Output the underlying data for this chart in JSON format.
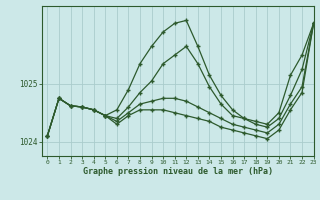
{
  "title": "Graphe pression niveau de la mer (hPa)",
  "bg_color": "#cce8e8",
  "grid_color": "#aacccc",
  "line_color": "#2d5a2d",
  "xlim": [
    -0.5,
    23
  ],
  "ylim": [
    1023.75,
    1026.35
  ],
  "yticks": [
    1024,
    1025
  ],
  "ytick_labels": [
    "1024",
    "1025"
  ],
  "xticks": [
    0,
    1,
    2,
    3,
    4,
    5,
    6,
    7,
    8,
    9,
    10,
    11,
    12,
    13,
    14,
    15,
    16,
    17,
    18,
    19,
    20,
    21,
    22,
    23
  ],
  "series": [
    [
      1024.1,
      1024.75,
      1024.62,
      1024.6,
      1024.55,
      1024.45,
      1024.55,
      1024.9,
      1025.35,
      1025.65,
      1025.9,
      1026.05,
      1026.1,
      1025.65,
      1025.15,
      1024.8,
      1024.55,
      1024.4,
      1024.35,
      1024.3,
      1024.5,
      1025.15,
      1025.5,
      1026.05
    ],
    [
      1024.1,
      1024.75,
      1024.62,
      1024.6,
      1024.55,
      1024.45,
      1024.4,
      1024.6,
      1024.85,
      1025.05,
      1025.35,
      1025.5,
      1025.65,
      1025.35,
      1024.95,
      1024.65,
      1024.45,
      1024.4,
      1024.3,
      1024.25,
      1024.4,
      1024.8,
      1025.25,
      1026.05
    ],
    [
      1024.1,
      1024.75,
      1024.62,
      1024.6,
      1024.55,
      1024.45,
      1024.35,
      1024.5,
      1024.65,
      1024.7,
      1024.75,
      1024.75,
      1024.7,
      1024.6,
      1024.5,
      1024.4,
      1024.3,
      1024.25,
      1024.2,
      1024.15,
      1024.3,
      1024.65,
      1024.95,
      1026.05
    ],
    [
      1024.1,
      1024.75,
      1024.62,
      1024.6,
      1024.55,
      1024.45,
      1024.3,
      1024.45,
      1024.55,
      1024.55,
      1024.55,
      1024.5,
      1024.45,
      1024.4,
      1024.35,
      1024.25,
      1024.2,
      1024.15,
      1024.1,
      1024.05,
      1024.2,
      1024.55,
      1024.85,
      1026.05
    ]
  ]
}
